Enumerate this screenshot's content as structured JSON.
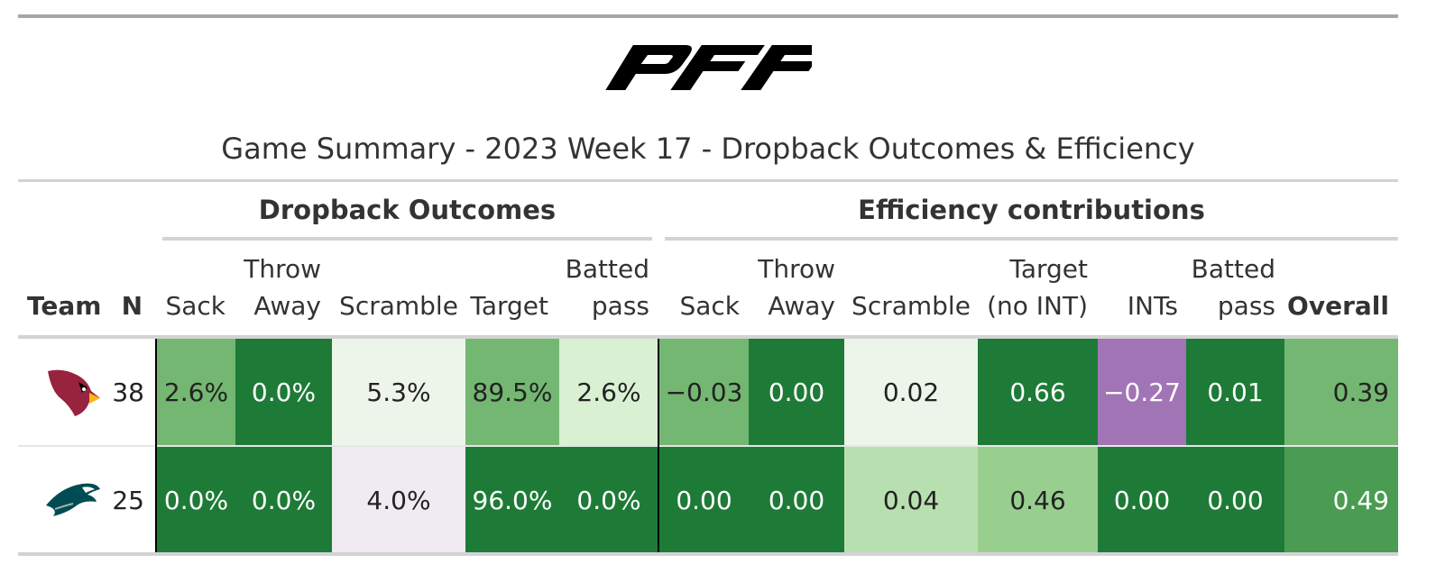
{
  "logo_text": "PFF",
  "title": "Game Summary - 2023 Week 17 - Dropback Outcomes & Efficiency",
  "spanners": {
    "dropback": "Dropback Outcomes",
    "efficiency": "Efficiency contributions"
  },
  "headers": {
    "team": "Team",
    "n": "N",
    "sack1": "Sack",
    "throw1_a": "Throw",
    "throw1_b": "Away",
    "scramble1": "Scramble",
    "target1": "Target",
    "batted1_a": "Batted",
    "batted1_b": "pass",
    "sack2": "Sack",
    "throw2_a": "Throw",
    "throw2_b": "Away",
    "scramble2": "Scramble",
    "target2_a": "Target",
    "target2_b": "(no INT)",
    "ints": "INTs",
    "batted2_a": "Batted",
    "batted2_b": "pass",
    "overall": "Overall"
  },
  "rows": [
    {
      "team_icon": "cardinals-logo-icon",
      "n": "38",
      "cells": [
        "2.6%",
        "0.0%",
        "5.3%",
        "89.5%",
        "2.6%",
        "−0.03",
        "0.00",
        "0.02",
        "0.66",
        "−0.27",
        "0.01",
        "0.39"
      ],
      "colors": [
        "#74b772",
        "#1e7b37",
        "#edf5eb",
        "#74b772",
        "#d9f0d3",
        "#74b772",
        "#1e7b37",
        "#edf5eb",
        "#1e7b37",
        "#a074b5",
        "#1e7b37",
        "#74b772"
      ],
      "text_colors": [
        "#222222",
        "#ffffff",
        "#222222",
        "#222222",
        "#222222",
        "#222222",
        "#ffffff",
        "#222222",
        "#ffffff",
        "#ffffff",
        "#ffffff",
        "#222222"
      ]
    },
    {
      "team_icon": "eagles-logo-icon",
      "n": "25",
      "cells": [
        "0.0%",
        "0.0%",
        "4.0%",
        "96.0%",
        "0.0%",
        "0.00",
        "0.00",
        "0.04",
        "0.46",
        "0.00",
        "0.00",
        "0.49"
      ],
      "colors": [
        "#1e7b37",
        "#1e7b37",
        "#f0eaf2",
        "#1e7b37",
        "#1e7b37",
        "#1e7b37",
        "#1e7b37",
        "#b8dfb0",
        "#98cf8f",
        "#1e7b37",
        "#1e7b37",
        "#4b9c53"
      ],
      "text_colors": [
        "#ffffff",
        "#ffffff",
        "#222222",
        "#ffffff",
        "#ffffff",
        "#ffffff",
        "#ffffff",
        "#222222",
        "#222222",
        "#ffffff",
        "#ffffff",
        "#ffffff"
      ]
    }
  ]
}
